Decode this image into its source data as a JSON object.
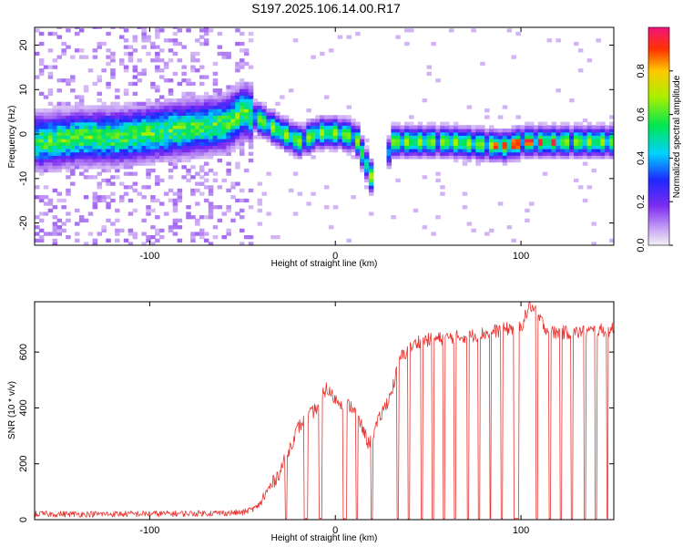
{
  "title": "S197.2025.106.14.00.R17",
  "colors": {
    "snr_line": "#e8322f",
    "low_amp": "#b48cf0",
    "mid_amp": "#5a14e6",
    "high_amp": "#00cccc"
  },
  "chart_data": [
    {
      "type": "heatmap",
      "xlabel": "Height of straight line (km)",
      "ylabel": "Frequency (Hz)",
      "xlim": [
        -162,
        150
      ],
      "ylim": [
        -25,
        24
      ],
      "xticks": [
        -100,
        0,
        100
      ],
      "yticks": [
        -20,
        -10,
        0,
        10,
        20
      ],
      "colorbar": {
        "label": "Normalized spectral amplitude",
        "range": [
          0,
          1
        ],
        "ticks": [
          0.0,
          0.2,
          0.4,
          0.6,
          0.8
        ]
      },
      "ridge": [
        {
          "x": -160,
          "freq": -2
        },
        {
          "x": -140,
          "freq": -1
        },
        {
          "x": -120,
          "freq": -1
        },
        {
          "x": -100,
          "freq": 0
        },
        {
          "x": -80,
          "freq": 1
        },
        {
          "x": -60,
          "freq": 2
        },
        {
          "x": -50,
          "freq": 5
        },
        {
          "x": -42,
          "freq": 3
        },
        {
          "x": -30,
          "freq": 0
        },
        {
          "x": -20,
          "freq": -2
        },
        {
          "x": -10,
          "freq": 0
        },
        {
          "x": 0,
          "freq": 0
        },
        {
          "x": 10,
          "freq": -1
        },
        {
          "x": 20,
          "freq": -12
        },
        {
          "x": 30,
          "freq": -2
        },
        {
          "x": 60,
          "freq": -2
        },
        {
          "x": 90,
          "freq": -3
        },
        {
          "x": 100,
          "freq": -2
        },
        {
          "x": 130,
          "freq": -2
        },
        {
          "x": 148,
          "freq": -2
        }
      ]
    },
    {
      "type": "line",
      "xlabel": "Height of straight line (km)",
      "ylabel": "SNR (10 * v/v)",
      "xlim": [
        -162,
        150
      ],
      "ylim": [
        0,
        780
      ],
      "xticks": [
        -100,
        0,
        100
      ],
      "yticks": [
        0,
        200,
        400,
        600
      ],
      "envelope": [
        {
          "x": -162,
          "snr": 20
        },
        {
          "x": -120,
          "snr": 20
        },
        {
          "x": -80,
          "snr": 22
        },
        {
          "x": -50,
          "snr": 25
        },
        {
          "x": -42,
          "snr": 45
        },
        {
          "x": -30,
          "snr": 170
        },
        {
          "x": -20,
          "snr": 330
        },
        {
          "x": -10,
          "snr": 400
        },
        {
          "x": -5,
          "snr": 470
        },
        {
          "x": 0,
          "snr": 430
        },
        {
          "x": 10,
          "snr": 400
        },
        {
          "x": 18,
          "snr": 270
        },
        {
          "x": 25,
          "snr": 380
        },
        {
          "x": 30,
          "snr": 450
        },
        {
          "x": 35,
          "snr": 580
        },
        {
          "x": 45,
          "snr": 640
        },
        {
          "x": 60,
          "snr": 650
        },
        {
          "x": 75,
          "snr": 660
        },
        {
          "x": 90,
          "snr": 680
        },
        {
          "x": 100,
          "snr": 690
        },
        {
          "x": 105,
          "snr": 770
        },
        {
          "x": 115,
          "snr": 670
        },
        {
          "x": 130,
          "snr": 670
        },
        {
          "x": 148,
          "snr": 680
        }
      ],
      "dropouts": [
        {
          "from": -27,
          "to": -26
        },
        {
          "from": -17,
          "to": -15
        },
        {
          "from": -9,
          "to": -7
        },
        {
          "from": 4,
          "to": 6
        },
        {
          "from": 11,
          "to": 12
        },
        {
          "from": 19,
          "to": 20
        },
        {
          "from": 33,
          "to": 34
        },
        {
          "from": 39,
          "to": 40
        },
        {
          "from": 46,
          "to": 47
        },
        {
          "from": 52,
          "to": 53
        },
        {
          "from": 58,
          "to": 59
        },
        {
          "from": 64,
          "to": 65
        },
        {
          "from": 71,
          "to": 72
        },
        {
          "from": 77,
          "to": 78
        },
        {
          "from": 83,
          "to": 84
        },
        {
          "from": 89,
          "to": 90
        },
        {
          "from": 96,
          "to": 99
        },
        {
          "from": 108,
          "to": 109
        },
        {
          "from": 115,
          "to": 116
        },
        {
          "from": 121,
          "to": 122
        },
        {
          "from": 127,
          "to": 128
        },
        {
          "from": 134,
          "to": 135
        },
        {
          "from": 140,
          "to": 141
        },
        {
          "from": 146,
          "to": 147
        }
      ]
    }
  ]
}
